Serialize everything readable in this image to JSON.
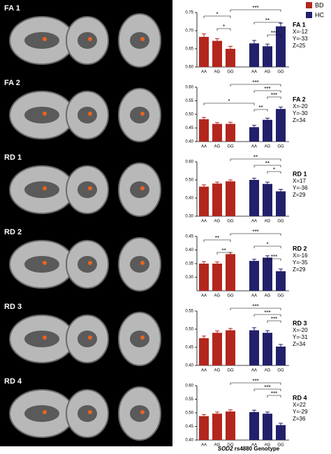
{
  "chart_data": [
    {
      "type": "bar",
      "label": "FA 1",
      "coords": [
        "X=-12",
        "Y=-33",
        "Z=25"
      ],
      "categories": [
        "AA",
        "AG",
        "GG"
      ],
      "series": [
        {
          "name": "BD",
          "color": "#b3261e",
          "values": [
            0.683,
            0.672,
            0.65
          ],
          "errors": [
            0.008,
            0.006,
            0.007
          ]
        },
        {
          "name": "HC",
          "color": "#22206b",
          "values": [
            0.665,
            0.657,
            0.712
          ],
          "errors": [
            0.008,
            0.006,
            0.009
          ]
        }
      ],
      "ylim": [
        0.6,
        0.75
      ],
      "yticks": [
        {
          "value": 0.6,
          "label": "0.60"
        },
        {
          "value": 0.65,
          "label": "0.65"
        },
        {
          "value": 0.7,
          "label": "0.70"
        },
        {
          "value": 0.75,
          "label": "0.75"
        }
      ],
      "brackets": [
        {
          "label": "***",
          "from": 2,
          "to": 5
        },
        {
          "label": "*",
          "from": 0,
          "to": 2
        },
        {
          "label": "**",
          "from": 3,
          "to": 5
        },
        {
          "label": "*",
          "from": 1,
          "to": 2
        },
        {
          "label": "***",
          "from": 4,
          "to": 5
        }
      ]
    },
    {
      "type": "bar",
      "label": "FA 2",
      "coords": [
        "X=-20",
        "Y=-30",
        "Z=34"
      ],
      "categories": [
        "AA",
        "AG",
        "GG"
      ],
      "series": [
        {
          "name": "BD",
          "color": "#b3261e",
          "values": [
            0.482,
            0.465,
            0.465
          ],
          "errors": [
            0.007,
            0.005,
            0.006
          ]
        },
        {
          "name": "HC",
          "color": "#22206b",
          "values": [
            0.453,
            0.48,
            0.52
          ],
          "errors": [
            0.007,
            0.006,
            0.007
          ]
        }
      ],
      "ylim": [
        0.4,
        0.6
      ],
      "yticks": [
        {
          "value": 0.4,
          "label": "0.40"
        },
        0.45,
        {
          "value": 0.5,
          "label": "0.50"
        },
        0.55,
        {
          "value": 0.6,
          "label": "0.60"
        }
      ],
      "brackets": [
        {
          "label": "***",
          "from": 2,
          "to": 5
        },
        {
          "label": "***",
          "from": 3,
          "to": 5
        },
        {
          "label": "***",
          "from": 4,
          "to": 5
        },
        {
          "label": "*",
          "from": 0,
          "to": 3
        },
        {
          "label": "**",
          "from": 3,
          "to": 4
        }
      ]
    },
    {
      "type": "bar",
      "label": "RD 1",
      "coords": [
        "X=17",
        "Y=-36",
        "Z=29"
      ],
      "categories": [
        "AA",
        "AG",
        "GG"
      ],
      "series": [
        {
          "name": "BD",
          "color": "#b3261e",
          "values": [
            0.463,
            0.48,
            0.492
          ],
          "errors": [
            0.01,
            0.008,
            0.008
          ]
        },
        {
          "name": "HC",
          "color": "#22206b",
          "values": [
            0.5,
            0.478,
            0.437
          ],
          "errors": [
            0.009,
            0.01,
            0.011
          ]
        }
      ],
      "ylim": [
        0.3,
        0.6
      ],
      "yticks": [
        {
          "value": 0.3,
          "label": "0.30"
        },
        {
          "value": 0.4,
          "label": "0.40"
        },
        {
          "value": 0.5,
          "label": "0.50"
        },
        {
          "value": 0.6,
          "label": "0.60"
        }
      ],
      "brackets": [
        {
          "label": "**",
          "from": 2,
          "to": 5
        },
        {
          "label": "**",
          "from": 3,
          "to": 5
        },
        {
          "label": "*",
          "from": 4,
          "to": 5
        }
      ]
    },
    {
      "type": "bar",
      "label": "RD 2",
      "coords": [
        "X=-16",
        "Y=-35",
        "Z=29"
      ],
      "categories": [
        "AA",
        "AG",
        "GG"
      ],
      "series": [
        {
          "name": "BD",
          "color": "#b3261e",
          "values": [
            0.35,
            0.35,
            0.385
          ],
          "errors": [
            0.007,
            0.006,
            0.006
          ]
        },
        {
          "name": "HC",
          "color": "#22206b",
          "values": [
            0.36,
            0.372,
            0.322
          ],
          "errors": [
            0.006,
            0.007,
            0.008
          ]
        }
      ],
      "ylim": [
        0.25,
        0.45
      ],
      "yticks": [
        {
          "value": 0.3,
          "label": "0.30"
        },
        0.35,
        {
          "value": 0.4,
          "label": "0.40"
        },
        0.45
      ],
      "brackets": [
        {
          "label": "***",
          "from": 2,
          "to": 5
        },
        {
          "label": "**",
          "from": 0,
          "to": 2
        },
        {
          "label": "*",
          "from": 3,
          "to": 5
        },
        {
          "label": "**",
          "from": 1,
          "to": 2
        },
        {
          "label": "***",
          "from": 4,
          "to": 5
        }
      ]
    },
    {
      "type": "bar",
      "label": "RD 3",
      "coords": [
        "X=-20",
        "Y=-31",
        "Z=34"
      ],
      "categories": [
        "AA",
        "AG",
        "GG"
      ],
      "series": [
        {
          "name": "BD",
          "color": "#b3261e",
          "values": [
            0.475,
            0.49,
            0.497
          ],
          "errors": [
            0.006,
            0.005,
            0.005
          ]
        },
        {
          "name": "HC",
          "color": "#22206b",
          "values": [
            0.497,
            0.49,
            0.452
          ],
          "errors": [
            0.007,
            0.006,
            0.006
          ]
        }
      ],
      "ylim": [
        0.4,
        0.55
      ],
      "yticks": [
        {
          "value": 0.4,
          "label": "0.40"
        },
        0.45,
        {
          "value": 0.5,
          "label": "0.50"
        },
        0.55
      ],
      "brackets": [
        {
          "label": "***",
          "from": 2,
          "to": 5
        },
        {
          "label": "***",
          "from": 3,
          "to": 5
        },
        {
          "label": "***",
          "from": 4,
          "to": 5
        }
      ]
    },
    {
      "type": "bar",
      "label": "RD 4",
      "coords": [
        "X=22",
        "Y=-29",
        "Z=36"
      ],
      "categories": [
        "AA",
        "AG",
        "GG"
      ],
      "series": [
        {
          "name": "BD",
          "color": "#b3261e",
          "values": [
            0.488,
            0.497,
            0.505
          ],
          "errors": [
            0.006,
            0.006,
            0.006
          ]
        },
        {
          "name": "HC",
          "color": "#22206b",
          "values": [
            0.503,
            0.497,
            0.455
          ],
          "errors": [
            0.007,
            0.006,
            0.007
          ]
        }
      ],
      "ylim": [
        0.4,
        0.6
      ],
      "yticks": [
        {
          "value": 0.4,
          "label": "0.40"
        },
        0.45,
        {
          "value": 0.5,
          "label": "0.50"
        },
        0.55,
        {
          "value": 0.6,
          "label": "0.60"
        }
      ],
      "brackets": [
        {
          "label": "***",
          "from": 2,
          "to": 5
        },
        {
          "label": "***",
          "from": 3,
          "to": 5
        },
        {
          "label": "***",
          "from": 4,
          "to": 5
        }
      ]
    }
  ],
  "figure": {
    "x_label_gene": "SOD2",
    "x_label_rest": "rs4880 Genotype"
  }
}
